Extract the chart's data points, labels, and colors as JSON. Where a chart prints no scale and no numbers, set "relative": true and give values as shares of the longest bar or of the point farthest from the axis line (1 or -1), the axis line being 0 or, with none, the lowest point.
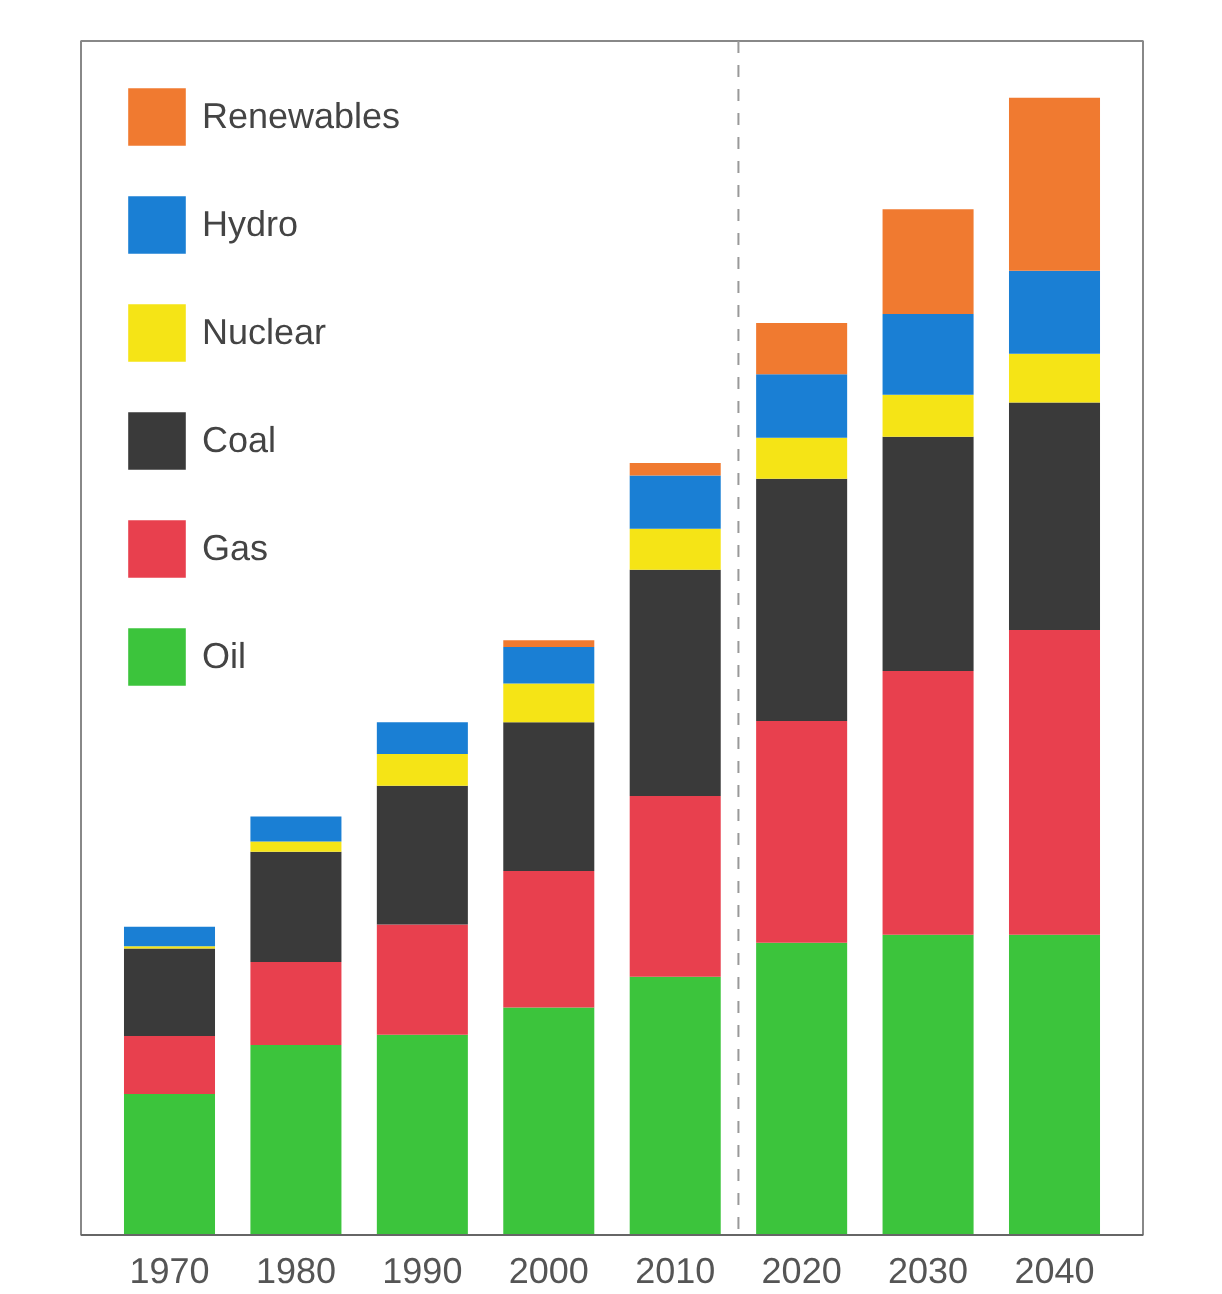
{
  "chart_data": {
    "type": "bar",
    "stacked": true,
    "relative": true,
    "x": [
      1970,
      1980,
      1990,
      2000,
      2010,
      2020,
      2030,
      2040
    ],
    "xlim": [
      1963,
      2047
    ],
    "xticks": [
      1970,
      1980,
      1990,
      2000,
      2010,
      2020,
      2030,
      2040
    ],
    "tick_labels": "x",
    "grid": false,
    "legend": "top left",
    "ref_lines": [
      {
        "axis": "x",
        "value": 2015,
        "line_style": "dashed",
        "color": "#999999"
      }
    ],
    "series": [
      {
        "name": "Oil",
        "color": "#3cc43c",
        "values": [
          0.124,
          0.167,
          0.176,
          0.2,
          0.227,
          0.257,
          0.264,
          0.264
        ]
      },
      {
        "name": "Gas",
        "color": "#e8404e",
        "values": [
          0.051,
          0.073,
          0.097,
          0.12,
          0.159,
          0.195,
          0.232,
          0.268
        ]
      },
      {
        "name": "Coal",
        "color": "#3a3a3a",
        "values": [
          0.077,
          0.097,
          0.122,
          0.131,
          0.199,
          0.213,
          0.206,
          0.2
        ]
      },
      {
        "name": "Nuclear",
        "color": "#f5e416",
        "values": [
          0.002,
          0.009,
          0.028,
          0.034,
          0.036,
          0.036,
          0.037,
          0.043
        ]
      },
      {
        "name": "Hydro",
        "color": "#1a7fd4",
        "values": [
          0.017,
          0.022,
          0.028,
          0.032,
          0.047,
          0.056,
          0.071,
          0.073
        ]
      },
      {
        "name": "Renewables",
        "color": "#f07a30",
        "values": [
          0,
          0,
          0,
          0.006,
          0.011,
          0.045,
          0.092,
          0.152
        ]
      }
    ]
  }
}
